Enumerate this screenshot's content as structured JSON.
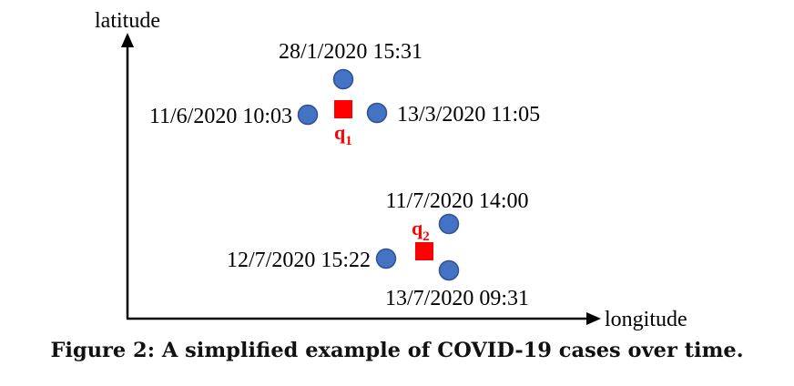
{
  "axes": {
    "y_label": "latitude",
    "x_label": "longitude"
  },
  "clusters": [
    {
      "query": {
        "label": "q",
        "subscript": "1"
      },
      "cases": [
        {
          "timestamp": "28/1/2020 15:31"
        },
        {
          "timestamp": "11/6/2020 10:03"
        },
        {
          "timestamp": "13/3/2020 11:05"
        }
      ]
    },
    {
      "query": {
        "label": "q",
        "subscript": "2"
      },
      "cases": [
        {
          "timestamp": "11/7/2020 14:00"
        },
        {
          "timestamp": "12/7/2020 15:22"
        },
        {
          "timestamp": "13/7/2020 09:31"
        }
      ]
    }
  ],
  "caption": "Figure 2: A simplified example of COVID-19 cases over time.",
  "colors": {
    "case_point_fill": "#4472C4",
    "case_point_stroke": "#2F528F",
    "query_point": "#FF0000",
    "axis": "#000000",
    "text": "#000000"
  }
}
